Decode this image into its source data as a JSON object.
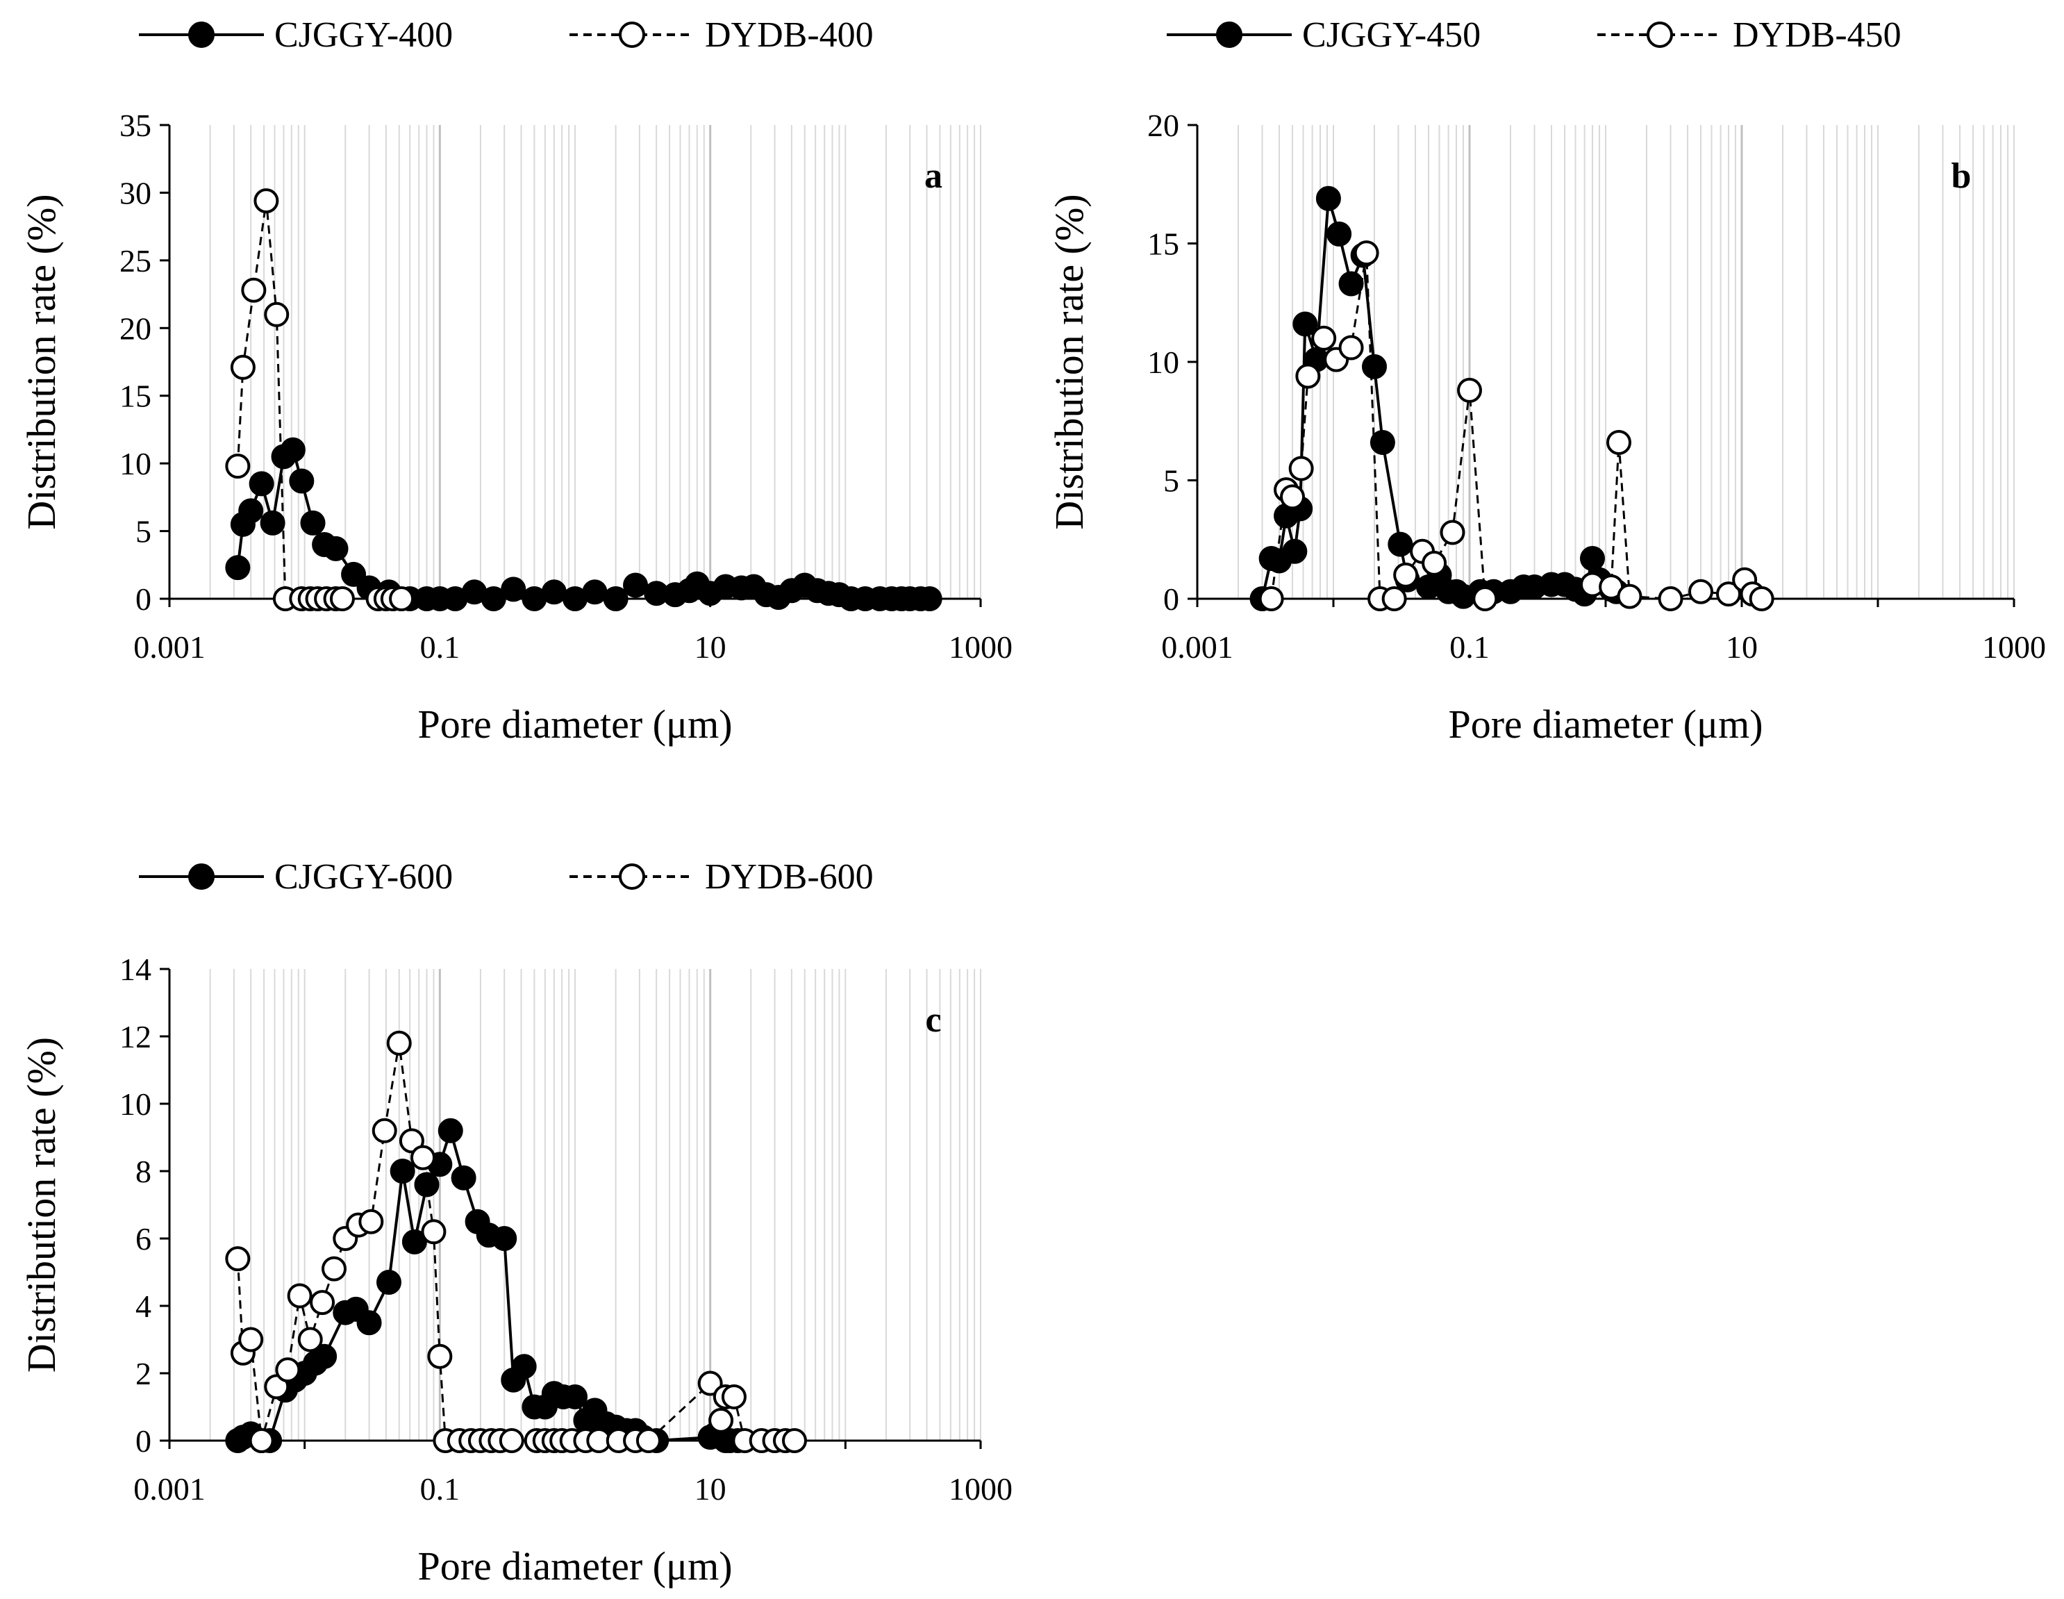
{
  "chart_data": [
    {
      "type": "scatter",
      "panel_label": "a",
      "xlabel": "Pore diameter (μm)",
      "ylabel": "Distribution rate (%)",
      "xscale": "log",
      "xlim": [
        0.001,
        1000
      ],
      "ylim": [
        0,
        35
      ],
      "x_ticks": [
        "0.001",
        "0.1",
        "10",
        "1000"
      ],
      "y_ticks": [
        0,
        5,
        10,
        15,
        20,
        25,
        30,
        35
      ],
      "legend_position": "top",
      "grid": true,
      "series": [
        {
          "name": "CJGGY-400",
          "style": "solid",
          "marker": "filled-circle",
          "points": [
            [
              0.0032,
              2.3
            ],
            [
              0.0035,
              5.5
            ],
            [
              0.004,
              6.5
            ],
            [
              0.0048,
              8.5
            ],
            [
              0.0058,
              5.6
            ],
            [
              0.007,
              10.5
            ],
            [
              0.0082,
              11
            ],
            [
              0.0095,
              8.7
            ],
            [
              0.0115,
              5.6
            ],
            [
              0.014,
              4
            ],
            [
              0.017,
              3.7
            ],
            [
              0.023,
              1.8
            ],
            [
              0.03,
              0.8
            ],
            [
              0.042,
              0.5
            ],
            [
              0.06,
              0
            ],
            [
              0.08,
              0
            ],
            [
              0.1,
              0
            ],
            [
              0.13,
              0
            ],
            [
              0.18,
              0.5
            ],
            [
              0.25,
              0
            ],
            [
              0.35,
              0.7
            ],
            [
              0.5,
              0
            ],
            [
              0.7,
              0.5
            ],
            [
              1,
              0
            ],
            [
              1.4,
              0.5
            ],
            [
              2,
              0
            ],
            [
              2.8,
              1
            ],
            [
              4,
              0.4
            ],
            [
              5.5,
              0.3
            ],
            [
              7,
              0.6
            ],
            [
              8,
              1.1
            ],
            [
              10,
              0.4
            ],
            [
              13,
              0.9
            ],
            [
              17,
              0.8
            ],
            [
              21,
              0.9
            ],
            [
              26,
              0.3
            ],
            [
              32,
              0.1
            ],
            [
              40,
              0.6
            ],
            [
              50,
              1
            ],
            [
              62,
              0.6
            ],
            [
              75,
              0.4
            ],
            [
              90,
              0.3
            ],
            [
              110,
              0
            ],
            [
              140,
              0
            ],
            [
              180,
              0
            ],
            [
              220,
              0
            ],
            [
              260,
              0
            ],
            [
              300,
              0
            ],
            [
              360,
              0
            ],
            [
              420,
              0
            ]
          ]
        },
        {
          "name": "DYDB-400",
          "style": "dashed",
          "marker": "open-circle",
          "points": [
            [
              0.0032,
              9.8
            ],
            [
              0.0035,
              17.1
            ],
            [
              0.0042,
              22.8
            ],
            [
              0.0052,
              29.4
            ],
            [
              0.0062,
              21
            ],
            [
              0.0072,
              0
            ],
            [
              0.0095,
              0
            ],
            [
              0.011,
              0
            ],
            [
              0.0125,
              0
            ],
            [
              0.0145,
              0
            ],
            [
              0.017,
              0
            ],
            [
              0.019,
              0
            ],
            [
              0.035,
              0
            ],
            [
              0.04,
              0
            ],
            [
              0.045,
              0
            ],
            [
              0.052,
              0
            ]
          ]
        }
      ]
    },
    {
      "type": "scatter",
      "panel_label": "b",
      "xlabel": "Pore diameter (μm)",
      "ylabel": "Distribution rate (%)",
      "xscale": "log",
      "xlim": [
        0.001,
        1000
      ],
      "ylim": [
        0,
        20
      ],
      "x_ticks": [
        "0.001",
        "0.1",
        "10",
        "1000"
      ],
      "y_ticks": [
        0,
        5,
        10,
        15,
        20
      ],
      "legend_position": "top",
      "grid": true,
      "series": [
        {
          "name": "CJGGY-450",
          "style": "solid",
          "marker": "filled-circle",
          "points": [
            [
              0.003,
              0
            ],
            [
              0.0035,
              1.7
            ],
            [
              0.004,
              1.6
            ],
            [
              0.0045,
              3.5
            ],
            [
              0.0052,
              2
            ],
            [
              0.0057,
              3.8
            ],
            [
              0.0062,
              11.6
            ],
            [
              0.0075,
              10.1
            ],
            [
              0.0092,
              16.9
            ],
            [
              0.011,
              15.4
            ],
            [
              0.0135,
              13.3
            ],
            [
              0.0165,
              14.5
            ],
            [
              0.02,
              9.8
            ],
            [
              0.023,
              6.6
            ],
            [
              0.031,
              2.3
            ],
            [
              0.035,
              0.8
            ],
            [
              0.05,
              0.5
            ],
            [
              0.06,
              1
            ],
            [
              0.07,
              0.3
            ],
            [
              0.08,
              0.3
            ],
            [
              0.09,
              0.1
            ],
            [
              0.12,
              0.3
            ],
            [
              0.15,
              0.3
            ],
            [
              0.2,
              0.3
            ],
            [
              0.25,
              0.5
            ],
            [
              0.3,
              0.5
            ],
            [
              0.4,
              0.6
            ],
            [
              0.5,
              0.6
            ],
            [
              0.6,
              0.4
            ],
            [
              0.7,
              0.2
            ],
            [
              0.8,
              1.7
            ],
            [
              0.9,
              0.8
            ],
            [
              1.1,
              0.4
            ],
            [
              1.2,
              0.3
            ]
          ]
        },
        {
          "name": "DYDB-450",
          "style": "dashed",
          "marker": "open-circle",
          "points": [
            [
              0.0035,
              0
            ],
            [
              0.0045,
              4.6
            ],
            [
              0.005,
              4.3
            ],
            [
              0.0058,
              5.5
            ],
            [
              0.0065,
              9.4
            ],
            [
              0.0085,
              11
            ],
            [
              0.0105,
              10.1
            ],
            [
              0.0135,
              10.6
            ],
            [
              0.0175,
              14.6
            ],
            [
              0.022,
              0
            ],
            [
              0.028,
              0
            ],
            [
              0.034,
              1
            ],
            [
              0.045,
              2
            ],
            [
              0.055,
              1.5
            ],
            [
              0.075,
              2.8
            ],
            [
              0.1,
              8.8
            ],
            [
              0.13,
              0
            ],
            [
              0.8,
              0.6
            ],
            [
              1.1,
              0.5
            ],
            [
              1.25,
              6.6
            ],
            [
              1.5,
              0.1
            ],
            [
              3,
              0
            ],
            [
              5,
              0.3
            ],
            [
              8,
              0.2
            ],
            [
              10.5,
              0.8
            ],
            [
              12,
              0.2
            ],
            [
              14,
              0
            ]
          ]
        }
      ]
    },
    {
      "type": "scatter",
      "panel_label": "c",
      "xlabel": "Pore diameter (μm)",
      "ylabel": "Distribution rate (%)",
      "xscale": "log",
      "xlim": [
        0.001,
        1000
      ],
      "ylim": [
        0,
        14
      ],
      "x_ticks": [
        "0.001",
        "0.1",
        "10",
        "1000"
      ],
      "y_ticks": [
        0,
        2,
        4,
        6,
        8,
        10,
        12,
        14
      ],
      "legend_position": "top",
      "grid": true,
      "series": [
        {
          "name": "CJGGY-600",
          "style": "solid",
          "marker": "filled-circle",
          "points": [
            [
              0.0032,
              0
            ],
            [
              0.0035,
              0.1
            ],
            [
              0.004,
              0.2
            ],
            [
              0.0048,
              0
            ],
            [
              0.0055,
              0
            ],
            [
              0.0072,
              1.5
            ],
            [
              0.0085,
              1.8
            ],
            [
              0.01,
              2
            ],
            [
              0.012,
              2.3
            ],
            [
              0.014,
              2.5
            ],
            [
              0.02,
              3.8
            ],
            [
              0.024,
              3.9
            ],
            [
              0.03,
              3.5
            ],
            [
              0.042,
              4.7
            ],
            [
              0.053,
              8
            ],
            [
              0.065,
              5.9
            ],
            [
              0.08,
              7.6
            ],
            [
              0.1,
              8.2
            ],
            [
              0.12,
              9.2
            ],
            [
              0.15,
              7.8
            ],
            [
              0.19,
              6.5
            ],
            [
              0.23,
              6.1
            ],
            [
              0.3,
              6
            ],
            [
              0.35,
              1.8
            ],
            [
              0.42,
              2.2
            ],
            [
              0.5,
              1
            ],
            [
              0.6,
              1
            ],
            [
              0.7,
              1.4
            ],
            [
              0.82,
              1.3
            ],
            [
              1,
              1.3
            ],
            [
              1.2,
              0.6
            ],
            [
              1.4,
              0.9
            ],
            [
              1.7,
              0.5
            ],
            [
              2,
              0.4
            ],
            [
              2.4,
              0.3
            ],
            [
              2.8,
              0.3
            ],
            [
              3.2,
              0.1
            ],
            [
              4,
              0
            ],
            [
              10,
              0.1
            ],
            [
              11,
              0.2
            ],
            [
              12,
              0.1
            ],
            [
              13,
              0
            ],
            [
              14,
              0
            ],
            [
              16,
              0
            ]
          ]
        },
        {
          "name": "DYDB-600",
          "style": "dashed",
          "marker": "open-circle",
          "points": [
            [
              0.0032,
              5.4
            ],
            [
              0.0035,
              2.6
            ],
            [
              0.004,
              3
            ],
            [
              0.0048,
              0
            ],
            [
              0.0062,
              1.6
            ],
            [
              0.0075,
              2.1
            ],
            [
              0.0092,
              4.3
            ],
            [
              0.011,
              3
            ],
            [
              0.0135,
              4.1
            ],
            [
              0.0165,
              5.1
            ],
            [
              0.02,
              6
            ],
            [
              0.025,
              6.4
            ],
            [
              0.031,
              6.5
            ],
            [
              0.039,
              9.2
            ],
            [
              0.05,
              11.8
            ],
            [
              0.062,
              8.9
            ],
            [
              0.075,
              8.4
            ],
            [
              0.09,
              6.2
            ],
            [
              0.1,
              2.5
            ],
            [
              0.11,
              0
            ],
            [
              0.14,
              0
            ],
            [
              0.17,
              0
            ],
            [
              0.2,
              0
            ],
            [
              0.24,
              0
            ],
            [
              0.28,
              0
            ],
            [
              0.34,
              0
            ],
            [
              0.52,
              0
            ],
            [
              0.6,
              0
            ],
            [
              0.7,
              0
            ],
            [
              0.8,
              0
            ],
            [
              0.95,
              0
            ],
            [
              1.2,
              0
            ],
            [
              1.5,
              0
            ],
            [
              2.1,
              0
            ],
            [
              2.8,
              0
            ],
            [
              3.5,
              0
            ],
            [
              10,
              1.7
            ],
            [
              12,
              0.6
            ],
            [
              13,
              1.3
            ],
            [
              15,
              1.3
            ],
            [
              18,
              0
            ],
            [
              24,
              0
            ],
            [
              30,
              0
            ],
            [
              36,
              0
            ],
            [
              42,
              0
            ]
          ]
        }
      ]
    }
  ],
  "colors": {
    "ink": "#000000",
    "grid": "#d9d9d9",
    "grid_major": "#bfbfbf",
    "open_fill": "#ffffff"
  }
}
